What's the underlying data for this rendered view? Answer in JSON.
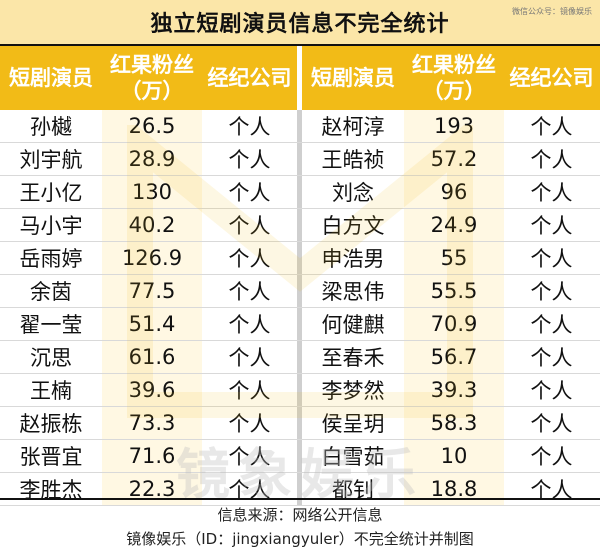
{
  "title": "独立短剧演员信息不完全统计",
  "source_tag": "微信公众号：镜像娱乐",
  "headers": {
    "name": "短剧演员",
    "fans_line1": "红果粉丝",
    "fans_line2": "（万）",
    "agency": "经纪公司"
  },
  "left_rows": [
    {
      "name": "孙樾",
      "fans": "26.5",
      "agency": "个人"
    },
    {
      "name": "刘宇航",
      "fans": "28.9",
      "agency": "个人"
    },
    {
      "name": "王小亿",
      "fans": "130",
      "agency": "个人"
    },
    {
      "name": "马小宇",
      "fans": "40.2",
      "agency": "个人"
    },
    {
      "name": "岳雨婷",
      "fans": "126.9",
      "agency": "个人"
    },
    {
      "name": "余茵",
      "fans": "77.5",
      "agency": "个人"
    },
    {
      "name": "翟一莹",
      "fans": "51.4",
      "agency": "个人"
    },
    {
      "name": "沉思",
      "fans": "61.6",
      "agency": "个人"
    },
    {
      "name": "王楠",
      "fans": "39.6",
      "agency": "个人"
    },
    {
      "name": "赵振栋",
      "fans": "73.3",
      "agency": "个人"
    },
    {
      "name": "张晋宜",
      "fans": "71.6",
      "agency": "个人"
    },
    {
      "name": "李胜杰",
      "fans": "22.3",
      "agency": "个人"
    }
  ],
  "right_rows": [
    {
      "name": "赵柯淳",
      "fans": "193",
      "agency": "个人"
    },
    {
      "name": "王皓祯",
      "fans": "57.2",
      "agency": "个人"
    },
    {
      "name": "刘念",
      "fans": "96",
      "agency": "个人"
    },
    {
      "name": "白方文",
      "fans": "24.9",
      "agency": "个人"
    },
    {
      "name": "申浩男",
      "fans": "55",
      "agency": "个人"
    },
    {
      "name": "梁思伟",
      "fans": "55.5",
      "agency": "个人"
    },
    {
      "name": "何健麒",
      "fans": "70.9",
      "agency": "个人"
    },
    {
      "name": "至春禾",
      "fans": "56.7",
      "agency": "个人"
    },
    {
      "name": "李梦然",
      "fans": "39.3",
      "agency": "个人"
    },
    {
      "name": "侯呈玥",
      "fans": "58.3",
      "agency": "个人"
    },
    {
      "name": "白雪茹",
      "fans": "10",
      "agency": "个人"
    },
    {
      "name": "都钊",
      "fans": "18.8",
      "agency": "个人"
    }
  ],
  "footer": {
    "line1": "信息来源：网络公开信息",
    "line2": "镜像娱乐（ID：jingxiangyuler）不完全统计并制图"
  },
  "watermark": "镜象娱乐",
  "colors": {
    "title_bg": "#fbe6a8",
    "header_bg": "#f2bb17",
    "fans_col_bg": "#fff8e3"
  }
}
